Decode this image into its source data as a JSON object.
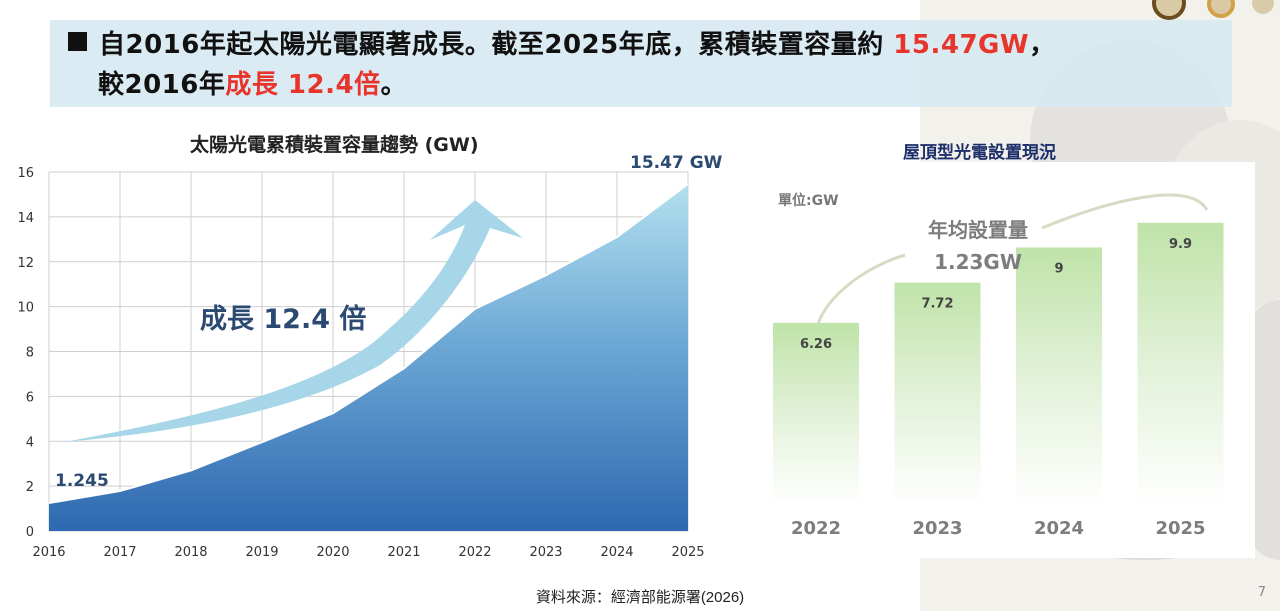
{
  "header": {
    "line1_prefix": "自2016年起太陽光電顯著成長。截至2025年底，累積裝置容量約",
    "line1_highlight": "15.47GW",
    "line1_suffix": "，",
    "line2_prefix": "較2016年",
    "line2_highlight": "成長 12.4倍",
    "line2_suffix": "。"
  },
  "colors": {
    "highlight_red": "#e8352c",
    "area_top": "#a9d9ea",
    "area_bottom": "#2e6db2",
    "arrow": "#a6d6e8",
    "bar_green": "#bfe3a8",
    "title_navy": "#1d2f6a"
  },
  "chart_data": [
    {
      "type": "area",
      "title": "太陽光電累積裝置容量趨勢 (GW)",
      "xlabel": "",
      "ylabel": "",
      "x": [
        "2016",
        "2017",
        "2018",
        "2019",
        "2020",
        "2021",
        "2022",
        "2023",
        "2024",
        "2025"
      ],
      "values": [
        1.245,
        1.78,
        2.7,
        3.96,
        5.25,
        7.25,
        9.9,
        11.4,
        13.1,
        15.47
      ],
      "ylim": [
        0,
        16
      ],
      "yticks": [
        0,
        2,
        4,
        6,
        8,
        10,
        12,
        14,
        16
      ],
      "grid": true,
      "annotations": {
        "start_label": "1.245",
        "end_label": "15.47 GW",
        "growth_label": "成長 12.4 倍"
      }
    },
    {
      "type": "bar",
      "title": "屋頂型光電設置現況",
      "unit_label": "單位:GW",
      "categories": [
        "2022",
        "2023",
        "2024",
        "2025"
      ],
      "values": [
        6.26,
        7.72,
        9,
        9.9
      ],
      "value_labels": [
        "6.26",
        "7.72",
        "9",
        "9.9"
      ],
      "annotation_line1": "年均設置量",
      "annotation_line2": "1.23GW"
    }
  ],
  "footer": {
    "source": "資料來源：經濟部能源署(2026)",
    "page_number": "7"
  }
}
